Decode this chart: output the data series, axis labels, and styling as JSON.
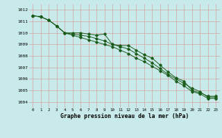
{
  "title": "Graphe pression niveau de la mer (hPa)",
  "bg_color": "#c8eaea",
  "grid_color": "#c0c0c0",
  "line_color": "#1a5c1a",
  "x_ticks": [
    0,
    1,
    2,
    3,
    4,
    5,
    6,
    7,
    8,
    9,
    10,
    11,
    12,
    13,
    14,
    15,
    16,
    17,
    18,
    19,
    20,
    21,
    22,
    23
  ],
  "ylim": [
    1003.5,
    1012.5
  ],
  "y_ticks": [
    1004,
    1005,
    1006,
    1007,
    1008,
    1009,
    1010,
    1011,
    1012
  ],
  "line1": [
    1011.5,
    1011.4,
    1011.1,
    1010.6,
    1010.0,
    1010.0,
    1010.0,
    1009.9,
    1009.8,
    1009.9,
    1009.0,
    1008.9,
    1008.9,
    1008.5,
    1008.1,
    1007.8,
    1007.2,
    1006.6,
    1006.1,
    1005.8,
    1005.0,
    1004.8,
    1004.5,
    1004.5
  ],
  "line2": [
    1011.5,
    1011.4,
    1011.1,
    1010.6,
    1010.0,
    1009.9,
    1009.8,
    1009.7,
    1009.5,
    1009.3,
    1009.0,
    1008.8,
    1008.6,
    1008.2,
    1007.8,
    1007.4,
    1006.9,
    1006.4,
    1006.0,
    1005.6,
    1005.2,
    1004.9,
    1004.4,
    1004.4
  ],
  "line3": [
    1011.5,
    1011.4,
    1011.1,
    1010.6,
    1010.0,
    1009.8,
    1009.6,
    1009.4,
    1009.2,
    1009.0,
    1008.8,
    1008.5,
    1008.2,
    1007.8,
    1007.5,
    1007.1,
    1006.7,
    1006.3,
    1005.8,
    1005.4,
    1004.9,
    1004.7,
    1004.3,
    1004.3
  ]
}
